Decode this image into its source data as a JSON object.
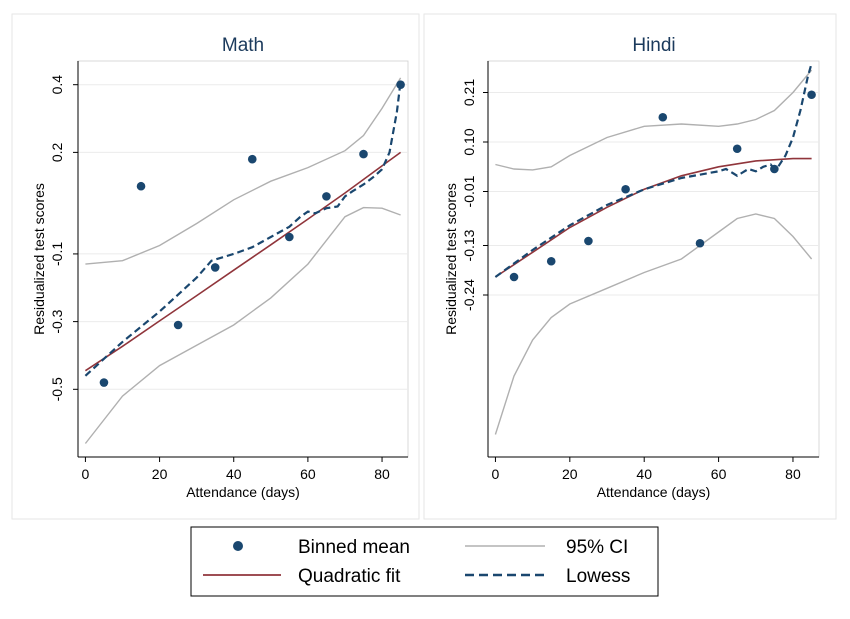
{
  "colors": {
    "point": "#1a476f",
    "quadratic": "#90353b",
    "ci": "#b0b0b0",
    "lowess": "#1a476f",
    "title": "#1b3a5c"
  },
  "legend": {
    "items": [
      {
        "key": "binned",
        "label": "Binned mean",
        "style": "marker"
      },
      {
        "key": "ci",
        "label": "95% CI",
        "style": "line-gray"
      },
      {
        "key": "quad",
        "label": "Quadratic fit",
        "style": "line-red"
      },
      {
        "key": "lowess",
        "label": "Lowess",
        "style": "line-dash"
      }
    ]
  },
  "chart_data": [
    {
      "type": "scatter",
      "title": "Math",
      "xlabel": "Attendance (days)",
      "ylabel": "Residualized test scores",
      "xlim": [
        -2,
        87
      ],
      "ylim": [
        -0.7,
        0.47
      ],
      "x_ticks": [
        0,
        20,
        40,
        60,
        80
      ],
      "y_ticks": [
        {
          "value": -0.5,
          "label": "-0.5"
        },
        {
          "value": -0.3,
          "label": "-0.3"
        },
        {
          "value": -0.1,
          "label": "-0.1"
        },
        {
          "value": 0.2,
          "label": "0.2"
        },
        {
          "value": 0.4,
          "label": "0.4"
        }
      ],
      "grid": true,
      "binned_mean": {
        "x": [
          5,
          15,
          25,
          35,
          45,
          55,
          65,
          75,
          85
        ],
        "y": [
          -0.48,
          0.1,
          -0.31,
          -0.14,
          0.18,
          -0.05,
          0.07,
          0.195,
          0.4
        ]
      },
      "quadratic_fit": {
        "x": [
          0,
          10,
          20,
          30,
          40,
          50,
          60,
          70,
          80,
          85
        ],
        "y": [
          -0.445,
          -0.373,
          -0.298,
          -0.223,
          -0.148,
          -0.073,
          0.003,
          0.08,
          0.16,
          0.2
        ]
      },
      "ci_upper": {
        "x": [
          0,
          10,
          20,
          30,
          40,
          50,
          60,
          70,
          75,
          80,
          85
        ],
        "y": [
          -0.13,
          -0.12,
          -0.075,
          -0.01,
          0.06,
          0.115,
          0.155,
          0.205,
          0.25,
          0.33,
          0.42
        ]
      },
      "ci_lower": {
        "x": [
          0,
          10,
          20,
          30,
          40,
          50,
          60,
          65,
          70,
          75,
          80,
          85
        ],
        "y": [
          -0.66,
          -0.52,
          -0.43,
          -0.37,
          -0.31,
          -0.23,
          -0.13,
          -0.06,
          0.01,
          0.037,
          0.035,
          0.015
        ]
      },
      "lowess": {
        "x": [
          0,
          10,
          20,
          30,
          34,
          40,
          45,
          50,
          55,
          58,
          60,
          62,
          65,
          68,
          70,
          72,
          75,
          78,
          80,
          82,
          84,
          85
        ],
        "y": [
          -0.46,
          -0.36,
          -0.27,
          -0.17,
          -0.12,
          -0.1,
          -0.08,
          -0.05,
          -0.02,
          0.01,
          0.025,
          0.02,
          0.035,
          0.04,
          0.07,
          0.085,
          0.105,
          0.13,
          0.15,
          0.2,
          0.32,
          0.41
        ]
      }
    },
    {
      "type": "scatter",
      "title": "Hindi",
      "xlabel": "Attendance (days)",
      "ylabel": "Residualized test scores",
      "xlim": [
        -2,
        87
      ],
      "ylim": [
        -0.6,
        0.28
      ],
      "x_ticks": [
        0,
        20,
        40,
        60,
        80
      ],
      "y_ticks": [
        {
          "value": -0.24,
          "label": "-0.24"
        },
        {
          "value": -0.13,
          "label": "-0.13"
        },
        {
          "value": -0.01,
          "label": "-0.01"
        },
        {
          "value": 0.1,
          "label": "0.10"
        },
        {
          "value": 0.21,
          "label": "0.21"
        }
      ],
      "grid": true,
      "binned_mean": {
        "x": [
          5,
          15,
          25,
          35,
          45,
          55,
          65,
          75,
          85
        ],
        "y": [
          -0.2,
          -0.165,
          -0.12,
          -0.005,
          0.155,
          -0.125,
          0.085,
          0.04,
          0.205
        ]
      },
      "quadratic_fit": {
        "x": [
          0,
          10,
          20,
          30,
          40,
          50,
          60,
          70,
          80,
          85
        ],
        "y": [
          -0.2,
          -0.145,
          -0.09,
          -0.045,
          -0.005,
          0.025,
          0.045,
          0.058,
          0.063,
          0.063
        ]
      },
      "ci_upper": {
        "x": [
          0,
          5,
          10,
          15,
          20,
          30,
          40,
          50,
          60,
          65,
          70,
          75,
          80,
          85
        ],
        "y": [
          0.05,
          0.04,
          0.038,
          0.045,
          0.07,
          0.11,
          0.135,
          0.14,
          0.135,
          0.14,
          0.15,
          0.17,
          0.21,
          0.26
        ]
      },
      "ci_lower": {
        "x": [
          0,
          5,
          10,
          15,
          20,
          30,
          40,
          50,
          60,
          65,
          70,
          75,
          80,
          85
        ],
        "y": [
          -0.55,
          -0.42,
          -0.34,
          -0.29,
          -0.26,
          -0.225,
          -0.19,
          -0.16,
          -0.1,
          -0.07,
          -0.06,
          -0.07,
          -0.11,
          -0.16
        ]
      },
      "lowess": {
        "x": [
          0,
          10,
          20,
          30,
          40,
          50,
          60,
          62,
          64,
          65,
          66,
          68,
          70,
          72,
          74,
          75,
          76,
          78,
          80,
          82,
          84,
          85
        ],
        "y": [
          -0.2,
          -0.14,
          -0.085,
          -0.04,
          -0.005,
          0.02,
          0.035,
          0.04,
          0.03,
          0.025,
          0.03,
          0.04,
          0.035,
          0.045,
          0.05,
          0.04,
          0.045,
          0.07,
          0.11,
          0.17,
          0.245,
          0.275
        ]
      }
    }
  ]
}
